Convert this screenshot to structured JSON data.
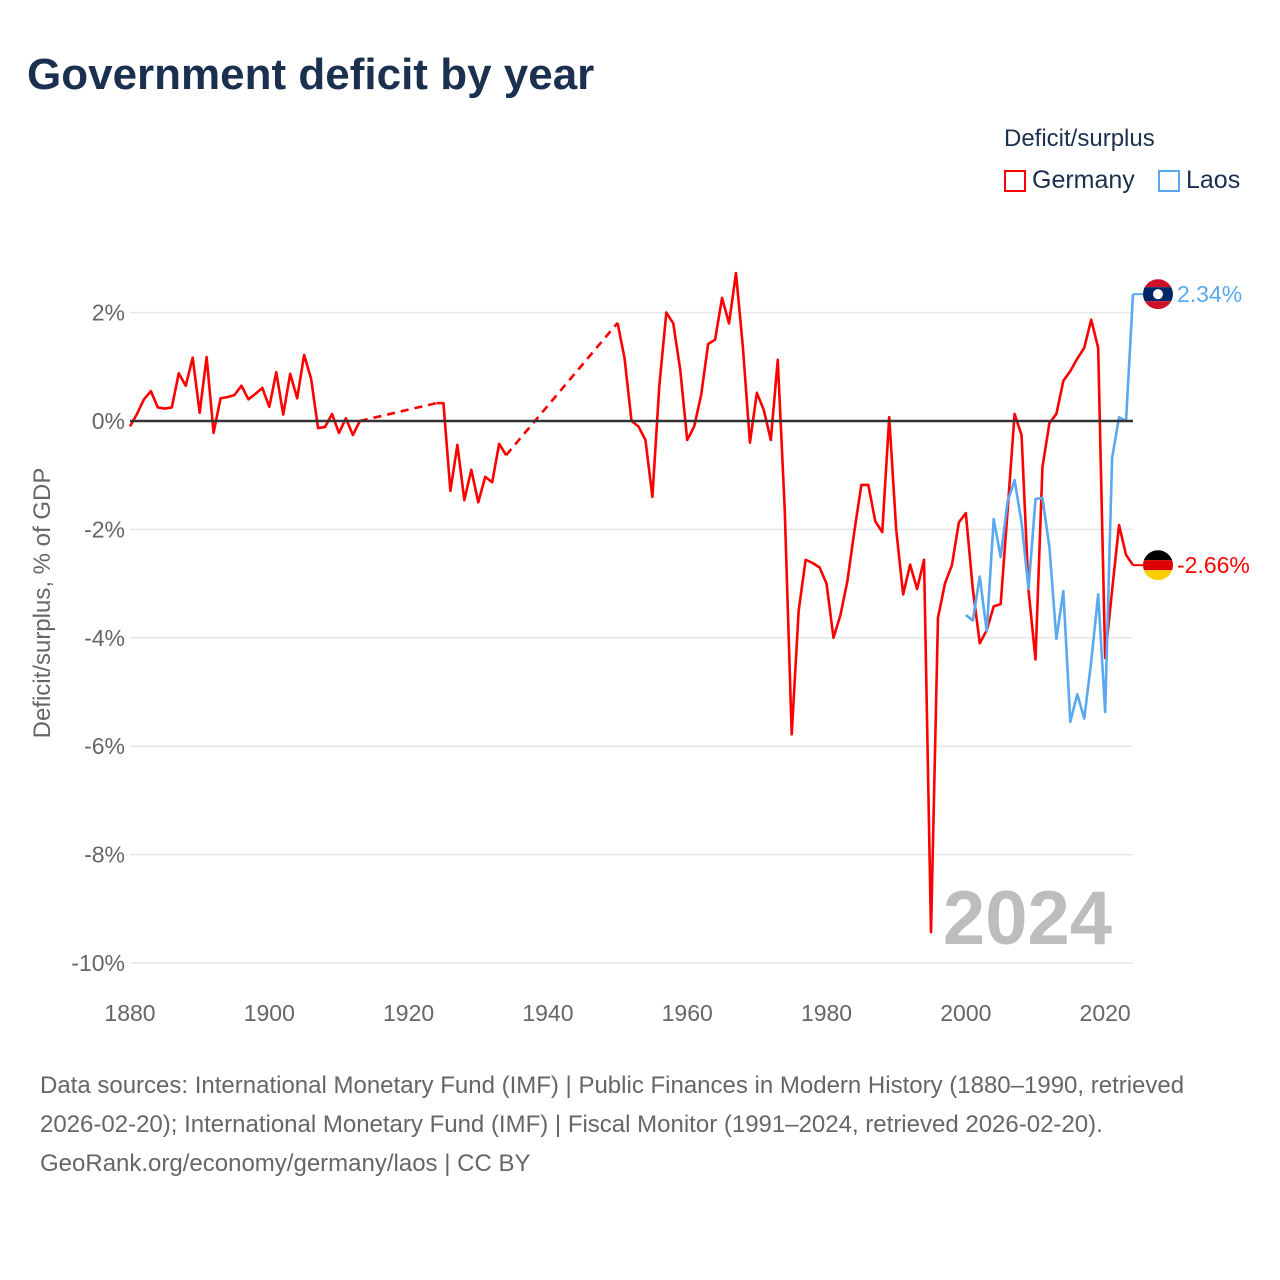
{
  "title": "Government deficit by year",
  "legend": {
    "title": "Deficit/surplus",
    "items": [
      {
        "name": "Germany",
        "color": "#ff0000"
      },
      {
        "name": "Laos",
        "color": "#5aa9f0"
      }
    ]
  },
  "footer": {
    "sources": "Data sources: International Monetary Fund (IMF) | Public Finances in Modern History (1880–1990, retrieved 2026-02-20); International Monetary Fund (IMF) | Fiscal Monitor (1991–2024, retrieved 2026-02-20).",
    "credit": "GeoRank.org/economy/germany/laos | CC BY"
  },
  "chart_data": {
    "type": "line",
    "title": "Government deficit by year",
    "ylabel": "Deficit/surplus, % of GDP",
    "xlabel": "",
    "xlim": [
      1880,
      2024
    ],
    "ylim": [
      -10,
      2.8
    ],
    "xticks": [
      1880,
      1900,
      1920,
      1940,
      1960,
      1980,
      2000,
      2020
    ],
    "xtick_labels": [
      "1880",
      "1900",
      "1920",
      "1940",
      "1960",
      "1980",
      "2000",
      "2020"
    ],
    "yticks": [
      2,
      0,
      -2,
      -4,
      -6,
      -8,
      -10
    ],
    "ytick_labels": [
      "2%",
      "0%",
      "-2%",
      "-4%",
      "-6%",
      "-8%",
      "-10%"
    ],
    "watermark_year": "2024",
    "grid": true,
    "legend_position": "top-right",
    "series": [
      {
        "name": "Germany",
        "color": "#ff0000",
        "start_year": 1880,
        "end_label": "-2.66%",
        "values": [
          -0.1,
          0.13,
          0.4,
          0.55,
          0.25,
          0.23,
          0.25,
          0.88,
          0.65,
          1.17,
          0.15,
          1.18,
          -0.22,
          0.42,
          0.44,
          0.48,
          0.65,
          0.4,
          0.5,
          0.61,
          0.26,
          0.9,
          0.12,
          0.87,
          0.42,
          1.22,
          0.78,
          -0.13,
          -0.11,
          0.13,
          -0.22,
          0.05,
          -0.26,
          0,
          null,
          null,
          null,
          null,
          null,
          null,
          null,
          null,
          null,
          null,
          0.33,
          0.33,
          -1.29,
          -0.44,
          -1.46,
          -0.9,
          -1.5,
          -1.03,
          -1.13,
          -0.42,
          -0.63,
          null,
          null,
          null,
          null,
          null,
          null,
          null,
          null,
          null,
          null,
          null,
          null,
          null,
          null,
          null,
          1.81,
          1.16,
          0,
          -0.1,
          -0.35,
          -1.4,
          0.66,
          2.0,
          1.8,
          0.94,
          -0.35,
          -0.1,
          0.48,
          1.42,
          1.5,
          2.27,
          1.8,
          2.73,
          1.35,
          -0.4,
          0.52,
          0.2,
          -0.35,
          1.13,
          -1.64,
          -5.78,
          -3.5,
          -2.56,
          -2.62,
          -2.7,
          -3.0,
          -4.0,
          -3.58,
          -2.95,
          -2.03,
          -1.18,
          -1.18,
          -1.85,
          -2.05,
          0.07,
          -2.0,
          -3.2,
          -2.65,
          -3.1,
          -2.56,
          -9.43,
          -3.63,
          -3.0,
          -2.66,
          -1.87,
          -1.7,
          -3.1,
          -4.1,
          -3.86,
          -3.42,
          -3.38,
          -1.65,
          0.13,
          -0.26,
          -3.12,
          -4.4,
          -0.85,
          -0.04,
          0.13,
          0.74,
          0.92,
          1.15,
          1.35,
          1.87,
          1.35,
          -4.37,
          -3.12,
          -1.92,
          -2.47,
          -2.66
        ]
      },
      {
        "name": "Laos",
        "color": "#5aa9f0",
        "start_year": 2000,
        "end_label": "2.34%",
        "values": [
          -3.58,
          -3.68,
          -2.87,
          -3.88,
          -1.81,
          -2.51,
          -1.48,
          -1.09,
          -1.87,
          -3.1,
          -1.44,
          -1.42,
          -2.33,
          -4.02,
          -3.14,
          -5.55,
          -5.04,
          -5.49,
          -4.44,
          -3.2,
          -5.37,
          -0.68,
          0.07,
          0,
          2.34
        ]
      }
    ]
  }
}
